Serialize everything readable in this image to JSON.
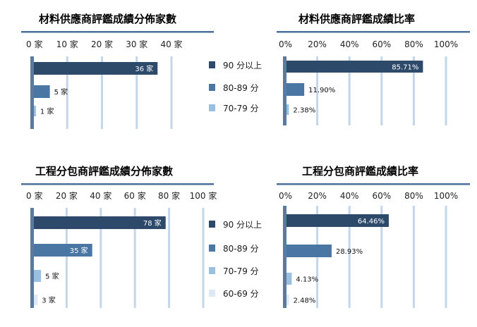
{
  "colors": {
    "c90": "#2d4a6b",
    "c80": "#4a76a3",
    "c70": "#9bbfe0",
    "c60": "#dde9f5",
    "grid": "#c4d6e9",
    "axis": "#5b7aa1",
    "rule": "#4a6f99"
  },
  "legend_top": [
    {
      "label": "90 分以上",
      "color_key": "c90"
    },
    {
      "label": "80-89 分",
      "color_key": "c80"
    },
    {
      "label": "70-79 分",
      "color_key": "c70"
    }
  ],
  "legend_bottom": [
    {
      "label": "90 分以上",
      "color_key": "c90"
    },
    {
      "label": "80-89 分",
      "color_key": "c80"
    },
    {
      "label": "70-79 分",
      "color_key": "c70"
    },
    {
      "label": "60-69 分",
      "color_key": "c60"
    }
  ],
  "chart_data": [
    {
      "type": "bar",
      "orientation": "horizontal",
      "title": "材料供應商評鑑成績分佈家數",
      "categories": [
        "90 分以上",
        "80-89 分",
        "70-79 分"
      ],
      "values": [
        36,
        5,
        1
      ],
      "data_labels": [
        "36 家",
        "5 家",
        "1 家"
      ],
      "ticks": [
        0,
        10,
        20,
        30,
        40
      ],
      "tick_labels": [
        "0 家",
        "10 家",
        "20 家",
        "30 家",
        "40 家"
      ],
      "xlim": [
        0,
        40
      ],
      "grid": true
    },
    {
      "type": "bar",
      "orientation": "horizontal",
      "title": "材料供應商評鑑成績比率",
      "categories": [
        "90 分以上",
        "80-89 分",
        "70-79 分"
      ],
      "values": [
        85.71,
        11.9,
        2.38
      ],
      "data_labels": [
        "85.71%",
        "11.90%",
        "2.38%"
      ],
      "ticks": [
        0,
        20,
        40,
        60,
        80,
        100
      ],
      "tick_labels": [
        "0%",
        "20%",
        "40%",
        "60%",
        "80%",
        "100%"
      ],
      "xlim": [
        0,
        100
      ],
      "grid": true
    },
    {
      "type": "bar",
      "orientation": "horizontal",
      "title": "工程分包商評鑑成績分佈家數",
      "categories": [
        "90 分以上",
        "80-89 分",
        "70-79 分",
        "60-69 分"
      ],
      "values": [
        78,
        35,
        5,
        3
      ],
      "data_labels": [
        "78 家",
        "35 家",
        "5 家",
        "3 家"
      ],
      "ticks": [
        0,
        20,
        40,
        60,
        80,
        100
      ],
      "tick_labels": [
        "0 家",
        "20 家",
        "40 家",
        "60 家",
        "80 家",
        "100 家"
      ],
      "xlim": [
        0,
        100
      ],
      "grid": true
    },
    {
      "type": "bar",
      "orientation": "horizontal",
      "title": "工程分包商評鑑成績比率",
      "categories": [
        "90 分以上",
        "80-89 分",
        "70-79 分",
        "60-69 分"
      ],
      "values": [
        64.46,
        28.93,
        4.13,
        2.48
      ],
      "data_labels": [
        "64.46%",
        "28.93%",
        "4.13%",
        "2.48%"
      ],
      "ticks": [
        0,
        20,
        40,
        60,
        80,
        100
      ],
      "tick_labels": [
        "0%",
        "20%",
        "40%",
        "60%",
        "80%",
        "100%"
      ],
      "xlim": [
        0,
        100
      ],
      "grid": true
    }
  ]
}
